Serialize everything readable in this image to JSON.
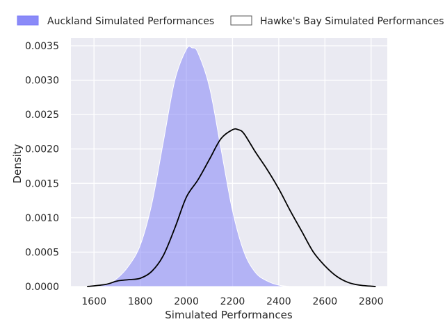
{
  "chart_data": {
    "type": "area",
    "title": "",
    "xlabel": "Simulated Performances",
    "ylabel": "Density",
    "xlim": [
      1500,
      2870
    ],
    "ylim": [
      0,
      0.0035
    ],
    "xticks": [
      1600,
      1800,
      2000,
      2200,
      2400,
      2600,
      2800
    ],
    "xtick_labels": [
      "1600",
      "1800",
      "2000",
      "2200",
      "2400",
      "2600",
      "2800"
    ],
    "yticks": [
      0,
      0.0005,
      0.001,
      0.0015,
      0.002,
      0.0025,
      0.003,
      0.0035
    ],
    "ytick_labels": [
      "0.0000",
      "0.0005",
      "0.0010",
      "0.0015",
      "0.0020",
      "0.0025",
      "0.0030",
      "0.0035"
    ],
    "grid": true,
    "legend": "top",
    "background": "#eaeaf2",
    "series": [
      {
        "name": "Auckland Simulated Performances",
        "style": "filled",
        "color": "#7b7bf7",
        "x": [
          1580,
          1650,
          1700,
          1750,
          1800,
          1850,
          1900,
          1950,
          2000,
          2025,
          2050,
          2100,
          2150,
          2200,
          2250,
          2300,
          2350,
          2400,
          2450
        ],
        "y": [
          0.0,
          3e-05,
          0.00012,
          0.0003,
          0.0006,
          0.0012,
          0.0021,
          0.003,
          0.00345,
          0.00347,
          0.0034,
          0.0029,
          0.002,
          0.0011,
          0.0005,
          0.0002,
          8e-05,
          2e-05,
          0.0
        ]
      },
      {
        "name": "Hawke's Bay Simulated Performances",
        "style": "line",
        "color": "#000000",
        "x": [
          1570,
          1650,
          1700,
          1750,
          1800,
          1850,
          1900,
          1950,
          2000,
          2050,
          2100,
          2150,
          2200,
          2225,
          2250,
          2300,
          2350,
          2400,
          2450,
          2500,
          2550,
          2600,
          2650,
          2700,
          2750,
          2820
        ],
        "y": [
          0.0,
          3e-05,
          8e-05,
          0.0001,
          0.00012,
          0.00022,
          0.00045,
          0.00085,
          0.0013,
          0.00155,
          0.00185,
          0.00215,
          0.00228,
          0.00228,
          0.00222,
          0.00195,
          0.0017,
          0.00142,
          0.0011,
          0.0008,
          0.0005,
          0.0003,
          0.00015,
          6e-05,
          2e-05,
          0.0
        ]
      }
    ]
  }
}
